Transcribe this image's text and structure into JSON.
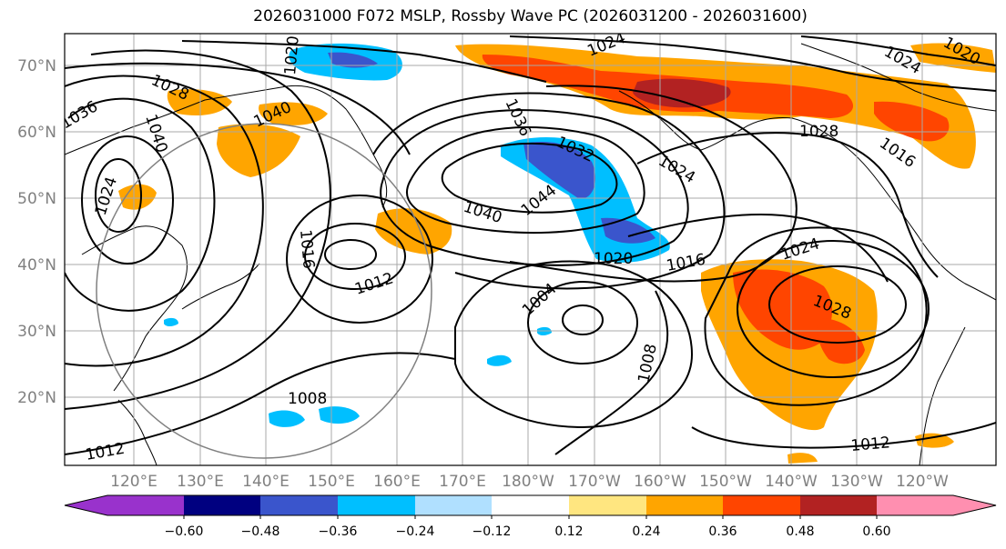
{
  "title": "2026031000 F072 MSLP, Rossby Wave PC (2026031200 - 2026031600)",
  "map": {
    "lat_ticks": [
      "70°N",
      "60°N",
      "50°N",
      "40°N",
      "30°N",
      "20°N"
    ],
    "lon_ticks": [
      "120°E",
      "130°E",
      "140°E",
      "150°E",
      "160°E",
      "170°E",
      "180°W",
      "170°W",
      "160°W",
      "150°W",
      "140°W",
      "130°W",
      "120°W"
    ],
    "contour_labels": [
      "1024",
      "1020",
      "1024",
      "1028",
      "1036",
      "1040",
      "1040",
      "1036",
      "1032",
      "1024",
      "1028",
      "1016",
      "1024",
      "1040",
      "1044",
      "1016",
      "1012",
      "1004",
      "1020",
      "1016",
      "1024",
      "1028",
      "1008",
      "1008",
      "1012",
      "1012",
      "1020"
    ],
    "colors": {
      "ocean": "#ffffff",
      "grid": "#a9a9a9",
      "isobar": "#000000",
      "tick_label": "#808080",
      "circle": "#808080"
    }
  },
  "colorbar": {
    "tick_labels": [
      "−0.60",
      "−0.48",
      "−0.36",
      "−0.24",
      "−0.12",
      "0.12",
      "0.24",
      "0.36",
      "0.48",
      "0.60"
    ],
    "bins": [
      {
        "color": "#9932cc"
      },
      {
        "color": "#000080"
      },
      {
        "color": "#3a55cc"
      },
      {
        "color": "#00bfff"
      },
      {
        "color": "#b0e0ff"
      },
      {
        "color": "#ffffff"
      },
      {
        "color": "#ffe680"
      },
      {
        "color": "#ffa500"
      },
      {
        "color": "#ff4500"
      },
      {
        "color": "#b22222"
      },
      {
        "color": "#ff8fb0"
      }
    ]
  }
}
